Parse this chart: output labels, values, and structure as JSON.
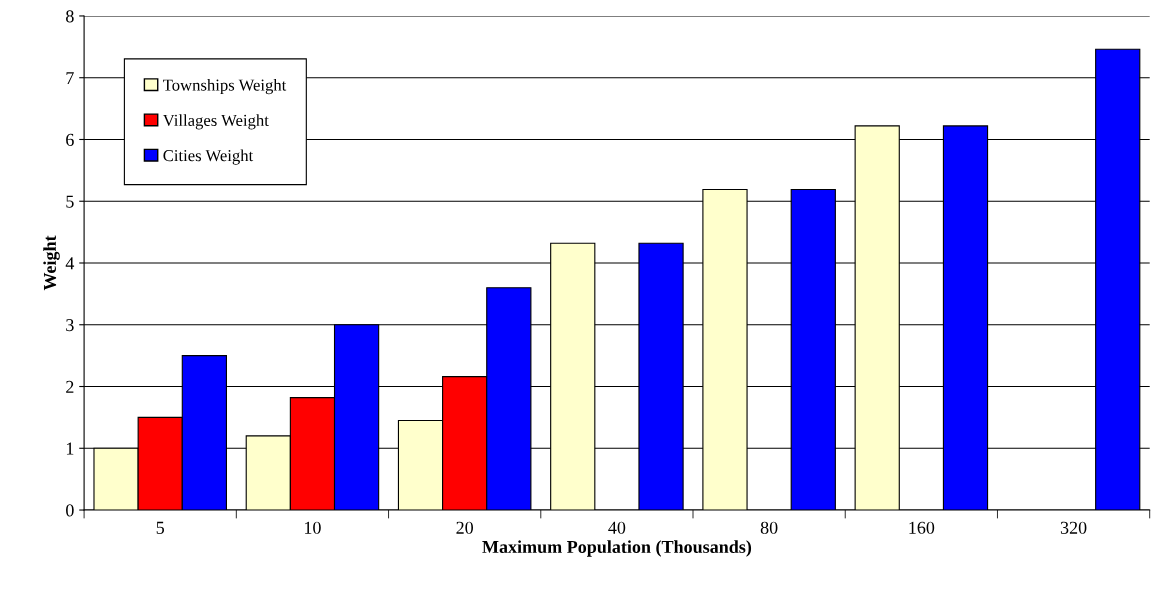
{
  "chart_data": {
    "type": "bar",
    "xlabel": "Maximum Population (Thousands)",
    "ylabel": "Weight",
    "categories": [
      "5",
      "10",
      "20",
      "40",
      "80",
      "160",
      "320"
    ],
    "series": [
      {
        "name": "Townships Weight",
        "color": "#ffffcc",
        "values": [
          1.0,
          1.2,
          1.45,
          4.32,
          5.19,
          6.22,
          null
        ]
      },
      {
        "name": "Villages Weight",
        "color": "#ff0000",
        "values": [
          1.5,
          1.82,
          2.16,
          null,
          null,
          null,
          null
        ]
      },
      {
        "name": "Cities Weight",
        "color": "#0000ff",
        "values": [
          2.5,
          3.0,
          3.6,
          4.32,
          5.19,
          6.22,
          7.46
        ]
      }
    ],
    "ylim": [
      0,
      8
    ],
    "yticks": [
      0,
      1,
      2,
      3,
      4,
      5,
      6,
      7,
      8
    ],
    "grid": "y",
    "legend": "top left"
  }
}
